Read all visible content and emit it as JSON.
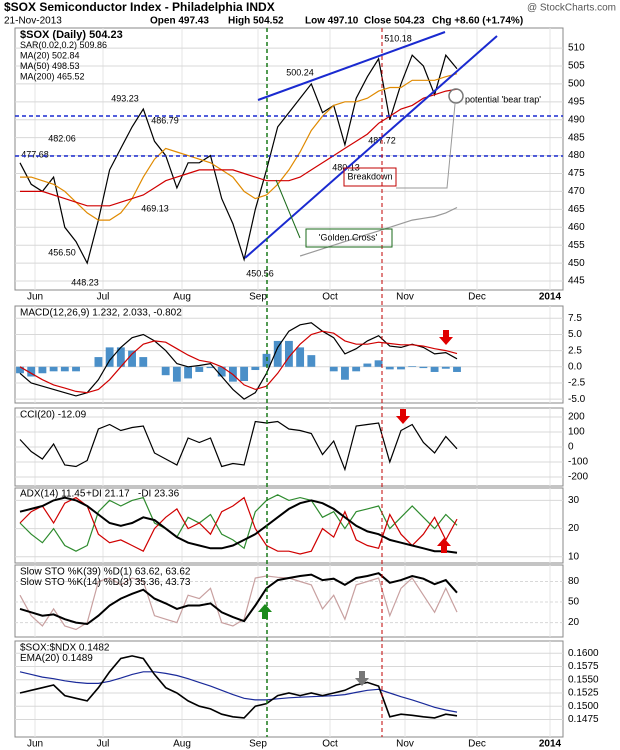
{
  "header": {
    "title": "$SOX Semiconductor Index - Philadelphia INDX",
    "site": "@ StockCharts.com",
    "date": "21-Nov-2013",
    "quote": [
      "Open 497.43",
      "High 504.52",
      "Low 497.10",
      "Close 504.23",
      "Chg +8.60 (+1.74%)"
    ]
  },
  "x_labels": [
    "Jun",
    "Jul",
    "Aug",
    "Sep",
    "Oct",
    "Nov",
    "Dec",
    "2014"
  ],
  "chart_data": [
    {
      "type": "line",
      "grid": true,
      "legend": [
        {
          "text": "$SOX (Daily) 504.23",
          "color": "#000000"
        },
        {
          "text": "SAR(0.02,0.2) 509.86",
          "color": "#808080"
        },
        {
          "text": "MA(20) 502.84",
          "color": "#e08a00"
        },
        {
          "text": "MA(50) 498.53",
          "color": "#d00000"
        },
        {
          "text": "MA(200) 465.52",
          "color": "#000000"
        }
      ],
      "ylim": [
        442.5,
        515.6
      ],
      "yticks": [
        445,
        450,
        455,
        460,
        465,
        470,
        475,
        480,
        485,
        490,
        495,
        500,
        505,
        510
      ],
      "series": [
        {
          "color": "#000000",
          "values": [
            478,
            472,
            470,
            474,
            460,
            456,
            450,
            462,
            476,
            482,
            488,
            493,
            484,
            480,
            471,
            478,
            478,
            480,
            468,
            461,
            451,
            465,
            476,
            488,
            492,
            496,
            500,
            492,
            494,
            483,
            496,
            502,
            507,
            490,
            500,
            508,
            505,
            497,
            508,
            504.23
          ]
        },
        {
          "color": "#e08a00",
          "values": [
            474,
            474,
            473,
            472,
            470,
            467,
            464,
            462,
            462,
            464,
            468,
            474,
            479,
            482,
            481,
            480,
            479,
            478,
            476,
            474,
            470,
            468,
            469,
            472,
            476,
            481,
            487,
            491,
            494,
            495,
            495,
            496,
            498,
            499,
            499,
            501,
            501,
            501,
            502,
            502.84
          ]
        },
        {
          "color": "#d00000",
          "values": [
            470,
            470,
            470,
            469,
            468,
            467,
            466,
            466,
            466,
            467,
            468,
            469,
            471,
            473,
            474,
            475,
            476,
            476,
            476,
            476,
            475,
            474,
            473,
            473,
            473,
            474,
            476,
            478,
            480,
            482,
            484,
            486,
            489,
            491,
            493,
            494,
            496,
            497,
            498,
            498.53
          ]
        },
        {
          "color": "#999999",
          "values": [
            null,
            null,
            null,
            null,
            null,
            null,
            null,
            null,
            null,
            null,
            null,
            null,
            null,
            null,
            null,
            null,
            null,
            null,
            null,
            null,
            null,
            null,
            null,
            null,
            null,
            452,
            453,
            454,
            455,
            456,
            457,
            458,
            459,
            460,
            461,
            462,
            462.5,
            463,
            464,
            465.52
          ]
        }
      ],
      "annotations": [
        "493.23",
        "486.79",
        "482.06",
        "477.68",
        "469.13",
        "456.50",
        "448.23",
        "450.56",
        "500.24",
        "510.18",
        "487.72",
        "480.13",
        "potential 'bear trap'",
        "Breakdown",
        "'Golden Cross'"
      ]
    },
    {
      "type": "line",
      "grid": true,
      "legend": [
        {
          "text": "MACD(12,26,9) 1.232, 2.033, -0.802",
          "color": "#000000"
        }
      ],
      "ylim": [
        -5.6,
        9.4
      ],
      "yticks": [
        {
          "value": 7.5,
          "label": "7.5"
        },
        {
          "value": 5,
          "label": "5.0"
        },
        {
          "value": 2.5,
          "label": "2.5"
        },
        {
          "value": 0,
          "label": "0.0"
        },
        {
          "value": -2.5,
          "label": "-2.5"
        },
        {
          "value": -5,
          "label": "-5.0"
        }
      ],
      "series": [
        {
          "type": "bar",
          "color": "#4a8fc8",
          "values": [
            -1,
            -1.5,
            -1,
            -0.7,
            -0.7,
            -0.7,
            0,
            1.5,
            3,
            3,
            2.5,
            1.5,
            0,
            -1.3,
            -2.3,
            -1.8,
            -0.8,
            -0.2,
            -1.5,
            -2.3,
            -2.2,
            -0.5,
            2,
            4,
            4,
            3,
            1.8,
            0,
            -0.7,
            -2,
            -0.7,
            0.5,
            1,
            -0.4,
            -0.4,
            0.1,
            -0.2,
            -0.8,
            -0.3,
            -0.802
          ]
        },
        {
          "color": "#000000",
          "values": [
            -1,
            -2.5,
            -3,
            -3.5,
            -4,
            -4.5,
            -4,
            -2,
            1,
            3,
            4.5,
            5,
            4,
            2.5,
            0.5,
            0,
            0.2,
            0.5,
            -1.5,
            -3.5,
            -5,
            -4,
            -1,
            3,
            5.5,
            6.5,
            6.8,
            5.5,
            4.5,
            2,
            2.8,
            4,
            4.8,
            3.2,
            3,
            3.5,
            3,
            2,
            2.2,
            1.232
          ]
        },
        {
          "color": "#d00000",
          "values": [
            0,
            -1,
            -2,
            -2.8,
            -3.3,
            -3.8,
            -4,
            -3.5,
            -2,
            0,
            2,
            3.5,
            4,
            3.8,
            2.8,
            1.8,
            1,
            0.7,
            0,
            -1.2,
            -2.8,
            -3.5,
            -3,
            -1,
            1.5,
            3.5,
            5,
            5.5,
            5.2,
            4,
            3.5,
            3.5,
            3.8,
            3.6,
            3.4,
            3.4,
            3.2,
            2.8,
            2.5,
            2.033
          ]
        }
      ]
    },
    {
      "type": "line",
      "grid": true,
      "legend": [
        {
          "text": "CCI(20) -12.09",
          "color": "#000000"
        }
      ],
      "ylim": [
        -260,
        260
      ],
      "yticks": [
        200,
        100,
        0,
        -100,
        -200
      ],
      "series": [
        {
          "color": "#000000",
          "values": [
            50,
            -30,
            -80,
            20,
            -120,
            -130,
            -90,
            120,
            150,
            110,
            130,
            140,
            -40,
            -80,
            -120,
            60,
            30,
            60,
            -130,
            -110,
            -120,
            170,
            160,
            170,
            120,
            110,
            90,
            -50,
            40,
            -150,
            140,
            150,
            160,
            -100,
            110,
            150,
            30,
            -40,
            70,
            -12.09
          ]
        }
      ]
    },
    {
      "type": "line",
      "grid": true,
      "legend": [
        {
          "text": "ADX(14) 11.45",
          "color": "#000000"
        },
        {
          "text": "+DI 21.17",
          "color": "#2e8b2e"
        },
        {
          "text": "-DI 23.36",
          "color": "#d00000"
        }
      ],
      "ylim": [
        7.8,
        34.4
      ],
      "yticks": [
        30,
        20,
        10
      ],
      "series": [
        {
          "color": "#2e8b2e",
          "values": [
            22,
            18,
            15,
            20,
            14,
            12,
            14,
            26,
            30,
            28,
            30,
            31,
            22,
            20,
            17,
            24,
            22,
            25,
            18,
            16,
            13,
            26,
            30,
            32,
            30,
            31,
            30,
            24,
            26,
            20,
            26,
            27,
            28,
            20,
            24,
            28,
            24,
            20,
            25,
            21.17
          ]
        },
        {
          "color": "#d00000",
          "values": [
            22,
            26,
            28,
            22,
            29,
            31,
            28,
            18,
            15,
            16,
            14,
            12,
            20,
            24,
            27,
            20,
            22,
            18,
            26,
            28,
            31,
            20,
            14,
            12,
            12,
            11,
            12,
            20,
            17,
            26,
            16,
            14,
            13,
            25,
            18,
            14,
            18,
            24,
            16,
            23.36
          ]
        },
        {
          "color": "#000000",
          "width": 2,
          "values": [
            26,
            27,
            28,
            30,
            31,
            30,
            28,
            25,
            22,
            21,
            22,
            24,
            23,
            20,
            17,
            15,
            14,
            13,
            13,
            14,
            16,
            18,
            21,
            24,
            27,
            29,
            30,
            29,
            27,
            24,
            21,
            19,
            18,
            16,
            15,
            14,
            13,
            12,
            12,
            11.45
          ]
        }
      ]
    },
    {
      "type": "line",
      "grid": true,
      "legend": [
        {
          "text": "Slow STO %K(39) %D(1) 63.62, 63.62",
          "color": "#000000"
        },
        {
          "text": "Slow STO %K(14) %D(3) 35.36, 43.73",
          "color": "#000000"
        }
      ],
      "ylim": [
        -1,
        104
      ],
      "yticks": [
        80,
        50,
        20
      ],
      "series": [
        {
          "color": "#c8a0a0",
          "values": [
            60,
            30,
            15,
            40,
            15,
            10,
            20,
            80,
            85,
            75,
            85,
            80,
            30,
            25,
            20,
            60,
            55,
            70,
            20,
            15,
            25,
            85,
            88,
            86,
            85,
            80,
            75,
            40,
            60,
            25,
            75,
            80,
            85,
            30,
            70,
            85,
            60,
            35,
            70,
            35.36
          ]
        },
        {
          "color": "#000000",
          "width": 2,
          "values": [
            40,
            35,
            30,
            32,
            25,
            20,
            18,
            30,
            45,
            55,
            62,
            68,
            55,
            48,
            40,
            45,
            45,
            48,
            35,
            28,
            22,
            45,
            70,
            82,
            85,
            88,
            90,
            82,
            84,
            75,
            85,
            88,
            92,
            78,
            82,
            88,
            84,
            76,
            82,
            63.62
          ]
        }
      ]
    },
    {
      "type": "line",
      "grid": true,
      "legend": [
        {
          "text": "$SOX:$NDX 0.1482",
          "color": "#000000"
        },
        {
          "text": "EMA(20) 0.1489",
          "color": "#1a2a9a"
        }
      ],
      "ylim": [
        0.1442,
        0.1623
      ],
      "yticks": [
        {
          "value": 0.16,
          "label": "0.1600"
        },
        {
          "value": 0.1575,
          "label": "0.1575"
        },
        {
          "value": 0.155,
          "label": "0.1550"
        },
        {
          "value": 0.1525,
          "label": "0.1525"
        },
        {
          "value": 0.15,
          "label": "0.1500"
        },
        {
          "value": 0.1475,
          "label": "0.1475"
        }
      ],
      "series": [
        {
          "color": "#1a2a9a",
          "values": [
            0.1565,
            0.156,
            0.1555,
            0.1552,
            0.1548,
            0.1545,
            0.1543,
            0.1543,
            0.1547,
            0.1553,
            0.156,
            0.1565,
            0.1565,
            0.1562,
            0.1558,
            0.1552,
            0.1545,
            0.1538,
            0.153,
            0.1522,
            0.1515,
            0.1512,
            0.1512,
            0.1514,
            0.1516,
            0.1517,
            0.1518,
            0.1519,
            0.152,
            0.1522,
            0.1526,
            0.153,
            0.1532,
            0.1525,
            0.1518,
            0.1512,
            0.1505,
            0.1498,
            0.1493,
            0.1489
          ]
        },
        {
          "color": "#000000",
          "width": 1.6,
          "values": [
            0.1525,
            0.153,
            0.1535,
            0.154,
            0.152,
            0.1515,
            0.151,
            0.1535,
            0.1565,
            0.159,
            0.1595,
            0.159,
            0.156,
            0.1535,
            0.1525,
            0.151,
            0.15,
            0.1495,
            0.1485,
            0.148,
            0.1478,
            0.15,
            0.1505,
            0.152,
            0.1525,
            0.152,
            0.1525,
            0.152,
            0.1525,
            0.153,
            0.154,
            0.1545,
            0.1538,
            0.148,
            0.1485,
            0.1483,
            0.148,
            0.1478,
            0.1485,
            0.1482
          ]
        }
      ]
    }
  ]
}
